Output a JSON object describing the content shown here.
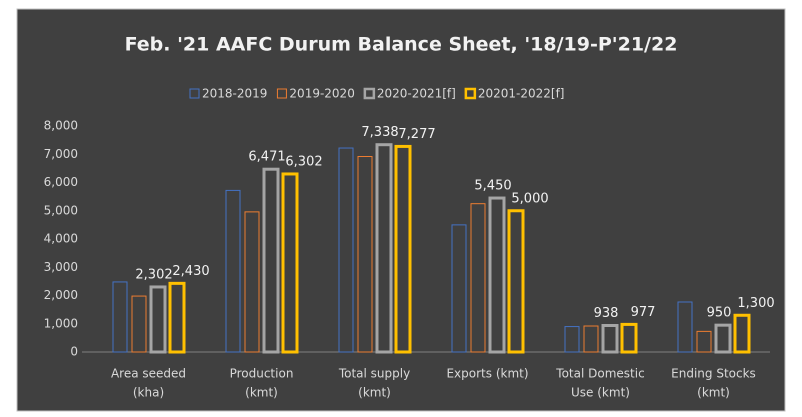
{
  "chart_data": {
    "type": "bar",
    "title": "Feb. '21 AAFC Durum Balance Sheet, '18/19-P'21/22",
    "categories": [
      [
        "Area seeded",
        "(kha)"
      ],
      [
        "Production",
        "(kmt)"
      ],
      [
        "Total supply",
        "(kmt)"
      ],
      [
        "Exports (kmt)"
      ],
      [
        "Total Domestic",
        "Use (kmt)"
      ],
      [
        "Ending Stocks",
        "(kmt)"
      ]
    ],
    "series": [
      {
        "name": "2018-2019",
        "color": "#4472c4",
        "values": [
          2480,
          5720,
          7220,
          4500,
          900,
          1770
        ]
      },
      {
        "name": "2019-2020",
        "color": "#ed7d31",
        "values": [
          1980,
          4960,
          6920,
          5250,
          920,
          730
        ]
      },
      {
        "name": "2020-2021[f]",
        "color": "#a5a5a5",
        "values": [
          2302,
          6471,
          7338,
          5450,
          938,
          950
        ],
        "value_labels": [
          "2,302",
          "6,471",
          "7,338",
          "5,450",
          "938",
          "950"
        ]
      },
      {
        "name": "20201-2022[f]",
        "color": "#ffc000",
        "values": [
          2430,
          6302,
          7277,
          5000,
          977,
          1300
        ],
        "value_labels": [
          "2,430",
          "6,302",
          "7,277",
          "5,000",
          "977",
          "1,300"
        ]
      }
    ],
    "ylim": [
      0,
      8000
    ],
    "yticks": [
      0,
      {
        "value": 1000,
        "label": "1,000"
      },
      {
        "value": 2000,
        "label": "2,000"
      },
      {
        "value": 3000,
        "label": "3,000"
      },
      {
        "value": 4000,
        "label": "4,000"
      },
      {
        "value": 5000,
        "label": "5,000"
      },
      {
        "value": 6000,
        "label": "6,000"
      },
      {
        "value": 7000,
        "label": "7,000"
      },
      {
        "value": 8000,
        "label": "8,000"
      }
    ],
    "grid": false,
    "legend": "top"
  }
}
